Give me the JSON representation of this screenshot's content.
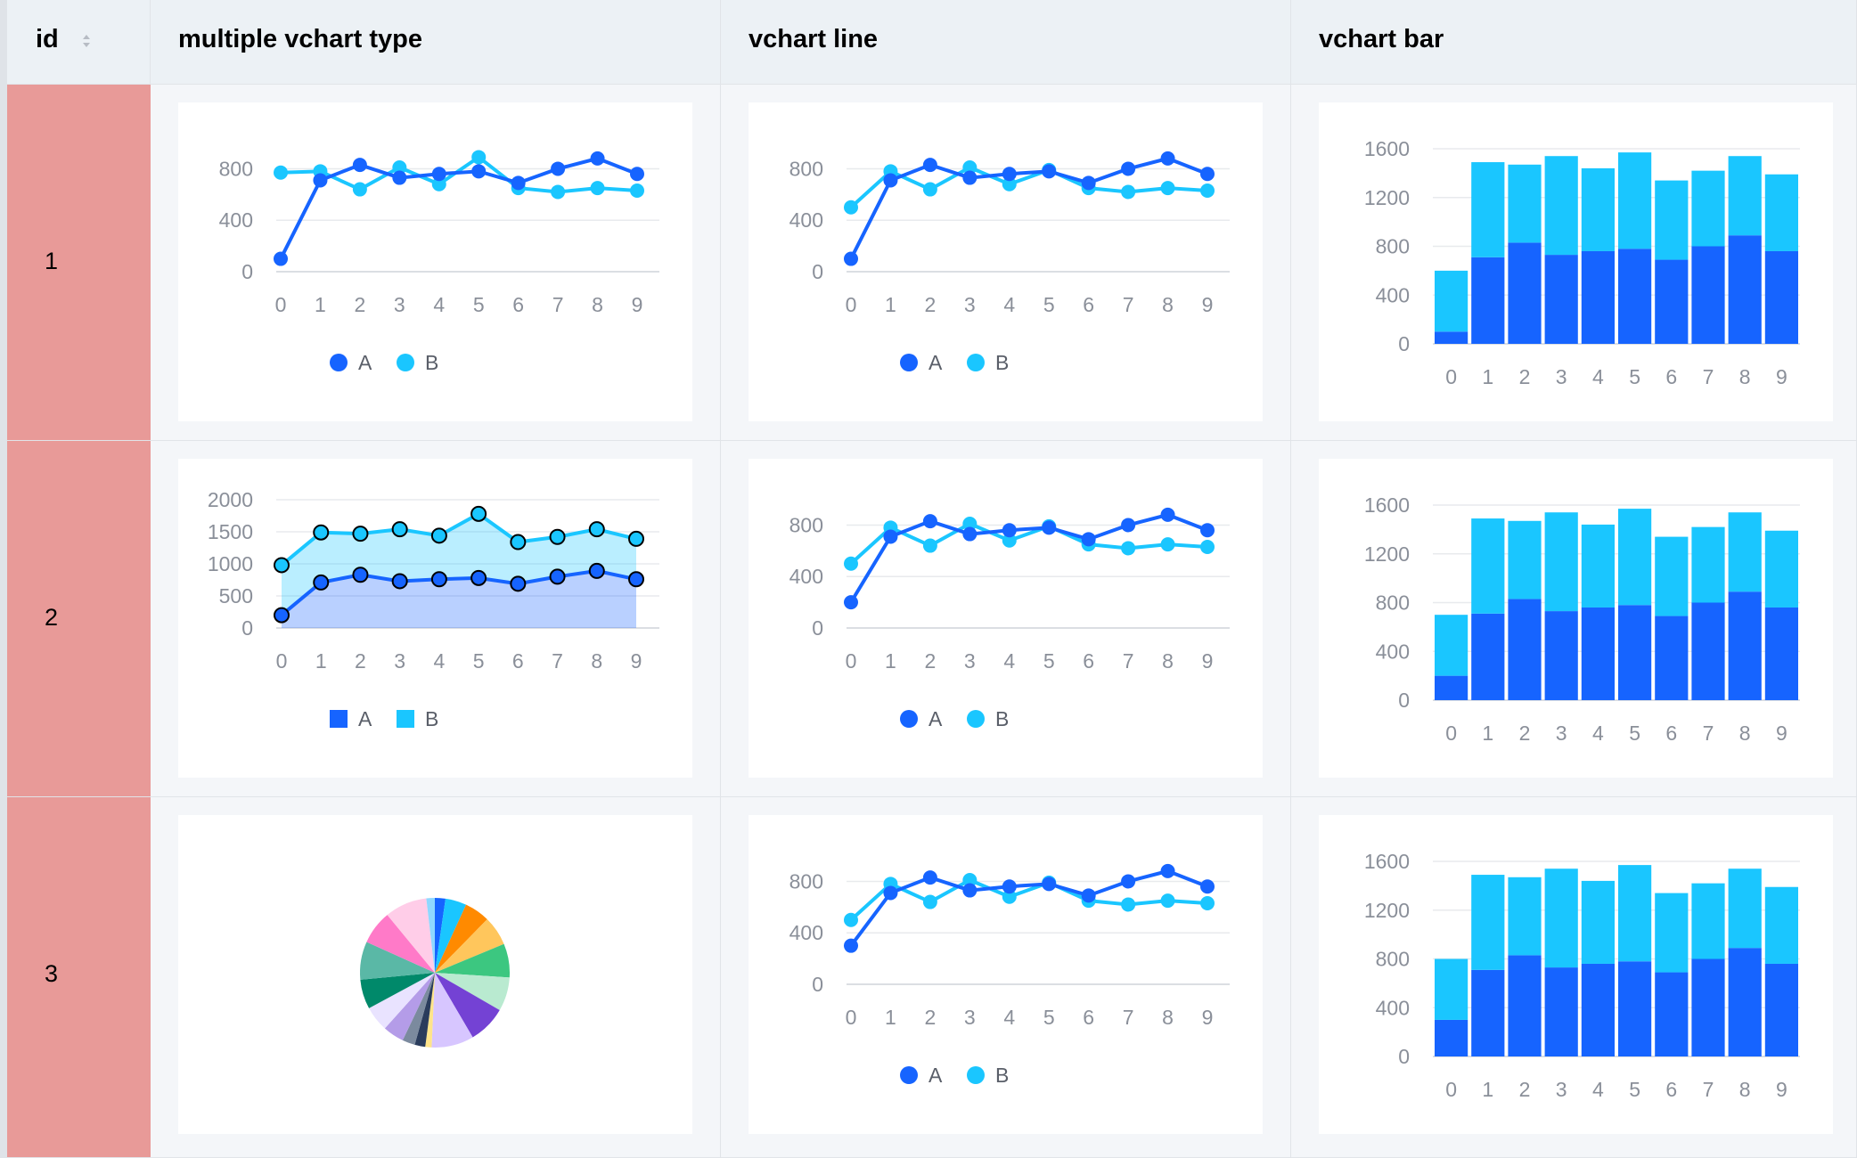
{
  "table": {
    "columns": [
      {
        "key": "id",
        "label": "id"
      },
      {
        "key": "multi",
        "label": "multiple vchart type"
      },
      {
        "key": "line",
        "label": "vchart line"
      },
      {
        "key": "bar",
        "label": "vchart bar"
      }
    ],
    "rows": [
      {
        "id": "1"
      },
      {
        "id": "2"
      },
      {
        "id": "3"
      }
    ],
    "sort_icon": "sort-icon"
  },
  "colors": {
    "seriesA": "#1664ff",
    "seriesB": "#1ac6ff",
    "header_bg": "#ecf1f5",
    "id_bg": "#e89a98",
    "grid": "#e8eaed",
    "tick": "#8a8f99"
  },
  "chart_data": [
    {
      "row": 1,
      "column": "multiple vchart type",
      "type": "line",
      "x": [
        "0",
        "1",
        "2",
        "3",
        "4",
        "5",
        "6",
        "7",
        "8",
        "9"
      ],
      "series": [
        {
          "name": "A",
          "values": [
            100,
            710,
            830,
            730,
            760,
            780,
            690,
            800,
            880,
            760
          ]
        },
        {
          "name": "B",
          "values": [
            770,
            780,
            640,
            810,
            680,
            890,
            650,
            620,
            650,
            630
          ]
        }
      ],
      "yticks": [
        "0",
        "400",
        "800"
      ],
      "ylim": [
        0,
        900
      ],
      "legend": [
        "A",
        "B"
      ],
      "legend_shape": "circle"
    },
    {
      "row": 1,
      "column": "vchart line",
      "type": "line",
      "x": [
        "0",
        "1",
        "2",
        "3",
        "4",
        "5",
        "6",
        "7",
        "8",
        "9"
      ],
      "series": [
        {
          "name": "A",
          "values": [
            100,
            710,
            830,
            730,
            760,
            780,
            690,
            800,
            880,
            760
          ]
        },
        {
          "name": "B",
          "values": [
            500,
            780,
            640,
            810,
            680,
            790,
            650,
            620,
            650,
            630
          ]
        }
      ],
      "yticks": [
        "0",
        "400",
        "800"
      ],
      "ylim": [
        0,
        900
      ],
      "legend": [
        "A",
        "B"
      ],
      "legend_shape": "circle"
    },
    {
      "row": 1,
      "column": "vchart bar",
      "type": "stacked-bar",
      "x": [
        "0",
        "1",
        "2",
        "3",
        "4",
        "5",
        "6",
        "7",
        "8",
        "9"
      ],
      "series": [
        {
          "name": "A",
          "values": [
            100,
            710,
            830,
            730,
            760,
            780,
            690,
            800,
            890,
            760
          ]
        },
        {
          "name": "B",
          "values": [
            500,
            780,
            640,
            810,
            680,
            790,
            650,
            620,
            650,
            630
          ]
        }
      ],
      "yticks": [
        "0",
        "400",
        "800",
        "1200",
        "1600"
      ],
      "ylim": [
        0,
        1600
      ]
    },
    {
      "row": 2,
      "column": "multiple vchart type",
      "type": "stacked-area",
      "x": [
        "0",
        "1",
        "2",
        "3",
        "4",
        "5",
        "6",
        "7",
        "8",
        "9"
      ],
      "series": [
        {
          "name": "A",
          "values": [
            200,
            710,
            830,
            730,
            760,
            780,
            690,
            800,
            890,
            760
          ]
        },
        {
          "name": "B",
          "values": [
            780,
            780,
            640,
            810,
            680,
            1000,
            650,
            620,
            650,
            630
          ]
        }
      ],
      "yticks": [
        "0",
        "500",
        "1000",
        "1500",
        "2000"
      ],
      "ylim": [
        0,
        2000
      ],
      "legend": [
        "A",
        "B"
      ],
      "legend_shape": "square"
    },
    {
      "row": 2,
      "column": "vchart line",
      "type": "line",
      "x": [
        "0",
        "1",
        "2",
        "3",
        "4",
        "5",
        "6",
        "7",
        "8",
        "9"
      ],
      "series": [
        {
          "name": "A",
          "values": [
            200,
            710,
            830,
            730,
            760,
            780,
            690,
            800,
            880,
            760
          ]
        },
        {
          "name": "B",
          "values": [
            500,
            780,
            640,
            810,
            680,
            790,
            650,
            620,
            650,
            630
          ]
        }
      ],
      "yticks": [
        "0",
        "400",
        "800"
      ],
      "ylim": [
        0,
        900
      ],
      "legend": [
        "A",
        "B"
      ],
      "legend_shape": "circle"
    },
    {
      "row": 2,
      "column": "vchart bar",
      "type": "stacked-bar",
      "x": [
        "0",
        "1",
        "2",
        "3",
        "4",
        "5",
        "6",
        "7",
        "8",
        "9"
      ],
      "series": [
        {
          "name": "A",
          "values": [
            200,
            710,
            830,
            730,
            760,
            780,
            690,
            800,
            890,
            760
          ]
        },
        {
          "name": "B",
          "values": [
            500,
            780,
            640,
            810,
            680,
            790,
            650,
            620,
            650,
            630
          ]
        }
      ],
      "yticks": [
        "0",
        "400",
        "800",
        "1200",
        "1600"
      ],
      "ylim": [
        0,
        1600
      ]
    },
    {
      "row": 3,
      "column": "multiple vchart type",
      "type": "pie",
      "slices": [
        {
          "value": 2.5,
          "color": "#1664ff"
        },
        {
          "value": 5,
          "color": "#1ac6ff"
        },
        {
          "value": 6,
          "color": "#ff8a00"
        },
        {
          "value": 7,
          "color": "#ffc65c"
        },
        {
          "value": 8,
          "color": "#3cc780"
        },
        {
          "value": 8,
          "color": "#b9ead0"
        },
        {
          "value": 9,
          "color": "#7442d4"
        },
        {
          "value": 10,
          "color": "#d7c6ff"
        },
        {
          "value": 1.5,
          "color": "#ffe48a"
        },
        {
          "value": 2.5,
          "color": "#2a3c5c"
        },
        {
          "value": 3,
          "color": "#7b8a9e"
        },
        {
          "value": 5,
          "color": "#b49ce8"
        },
        {
          "value": 6,
          "color": "#e9e3ff"
        },
        {
          "value": 7,
          "color": "#00896a"
        },
        {
          "value": 9,
          "color": "#5ab8a6"
        },
        {
          "value": 8,
          "color": "#ff7ac8"
        },
        {
          "value": 10,
          "color": "#ffcde8"
        },
        {
          "value": 2,
          "color": "#8fd8ff"
        }
      ]
    },
    {
      "row": 3,
      "column": "vchart line",
      "type": "line",
      "x": [
        "0",
        "1",
        "2",
        "3",
        "4",
        "5",
        "6",
        "7",
        "8",
        "9"
      ],
      "series": [
        {
          "name": "A",
          "values": [
            300,
            710,
            830,
            730,
            760,
            780,
            690,
            800,
            880,
            760
          ]
        },
        {
          "name": "B",
          "values": [
            500,
            780,
            640,
            810,
            680,
            790,
            650,
            620,
            650,
            630
          ]
        }
      ],
      "yticks": [
        "0",
        "400",
        "800"
      ],
      "ylim": [
        0,
        900
      ],
      "legend": [
        "A",
        "B"
      ],
      "legend_shape": "circle"
    },
    {
      "row": 3,
      "column": "vchart bar",
      "type": "stacked-bar",
      "x": [
        "0",
        "1",
        "2",
        "3",
        "4",
        "5",
        "6",
        "7",
        "8",
        "9"
      ],
      "series": [
        {
          "name": "A",
          "values": [
            300,
            710,
            830,
            730,
            760,
            780,
            690,
            800,
            890,
            760
          ]
        },
        {
          "name": "B",
          "values": [
            500,
            780,
            640,
            810,
            680,
            790,
            650,
            620,
            650,
            630
          ]
        }
      ],
      "yticks": [
        "0",
        "400",
        "800",
        "1200",
        "1600"
      ],
      "ylim": [
        0,
        1600
      ]
    }
  ]
}
